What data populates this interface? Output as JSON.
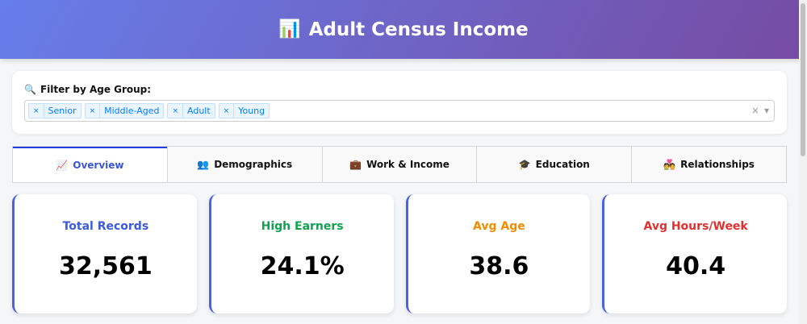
{
  "header": {
    "title": "Adult Census Income",
    "icon": "bar-chart-icon",
    "icon_glyph": "📊"
  },
  "filter": {
    "label": "Filter by Age Group:",
    "icon_glyph": "🔍",
    "tags": [
      "Senior",
      "Middle-Aged",
      "Adult",
      "Young"
    ],
    "remove_glyph": "×",
    "clear_glyph": "×",
    "arrow_glyph": "▾"
  },
  "tabs": [
    {
      "label": "Overview",
      "icon": "📈",
      "active": true
    },
    {
      "label": "Demographics",
      "icon": "👥"
    },
    {
      "label": "Work & Income",
      "icon": "💼"
    },
    {
      "label": "Education",
      "icon": "🎓"
    },
    {
      "label": "Relationships",
      "icon": "💑"
    }
  ],
  "cards": [
    {
      "label": "Total Records",
      "value": "32,561",
      "color": "#3b5bdb"
    },
    {
      "label": "High Earners",
      "value": "24.1%",
      "color": "#12a150"
    },
    {
      "label": "Avg Age",
      "value": "38.6",
      "color": "#f08c00"
    },
    {
      "label": "Avg Hours/Week",
      "value": "40.4",
      "color": "#e03131"
    }
  ]
}
